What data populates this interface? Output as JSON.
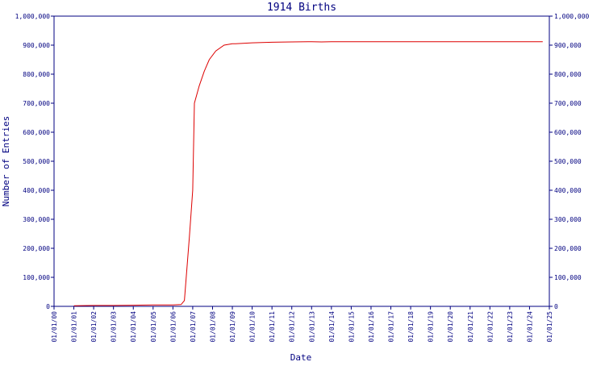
{
  "chart_data": {
    "type": "line",
    "title": "1914 Births",
    "xlabel": "Date",
    "ylabel": "Number of Entries",
    "ylim": [
      0,
      1000000
    ],
    "y_ticks": [
      "0",
      "100,000",
      "200,000",
      "300,000",
      "400,000",
      "500,000",
      "600,000",
      "700,000",
      "800,000",
      "900,000",
      "1,000,000"
    ],
    "x_ticks": [
      "01/01/00",
      "01/01/01",
      "01/01/02",
      "01/01/03",
      "01/01/04",
      "01/01/05",
      "01/01/06",
      "01/01/07",
      "01/01/08",
      "01/01/09",
      "01/01/10",
      "01/01/11",
      "01/01/12",
      "01/01/13",
      "01/01/14",
      "01/01/15",
      "01/01/16",
      "01/01/17",
      "01/01/18",
      "01/01/19",
      "01/01/20",
      "01/01/21",
      "01/01/22",
      "01/01/23",
      "01/01/24",
      "01/01/25"
    ],
    "grid": false,
    "line_color": "#dd0000",
    "axis_color": "#000080",
    "series": [
      {
        "x": [
          "2001-01-01",
          "2002-01-01",
          "2003-01-01",
          "2004-01-01",
          "2005-01-01",
          "2006-01-01",
          "2006-06-01",
          "2006-08-01",
          "2006-11-01",
          "2007-01-01",
          "2007-02-01",
          "2007-05-01",
          "2007-08-01",
          "2007-11-01",
          "2008-03-01",
          "2008-08-01",
          "2009-01-01",
          "2009-03-01",
          "2010-01-01",
          "2011-01-01",
          "2012-01-01",
          "2013-01-01",
          "2013-07-01",
          "2014-01-01",
          "2015-01-01",
          "2017-01-01",
          "2019-01-01",
          "2021-01-01",
          "2023-01-01",
          "2024-09-01"
        ],
        "y": [
          2000,
          3000,
          3000,
          4000,
          5000,
          5000,
          6000,
          20000,
          240000,
          400000,
          700000,
          760000,
          810000,
          850000,
          880000,
          900000,
          905000,
          905000,
          908000,
          910000,
          911000,
          912000,
          911000,
          912000,
          912000,
          912000,
          912000,
          912000,
          912000,
          912000
        ]
      }
    ]
  }
}
